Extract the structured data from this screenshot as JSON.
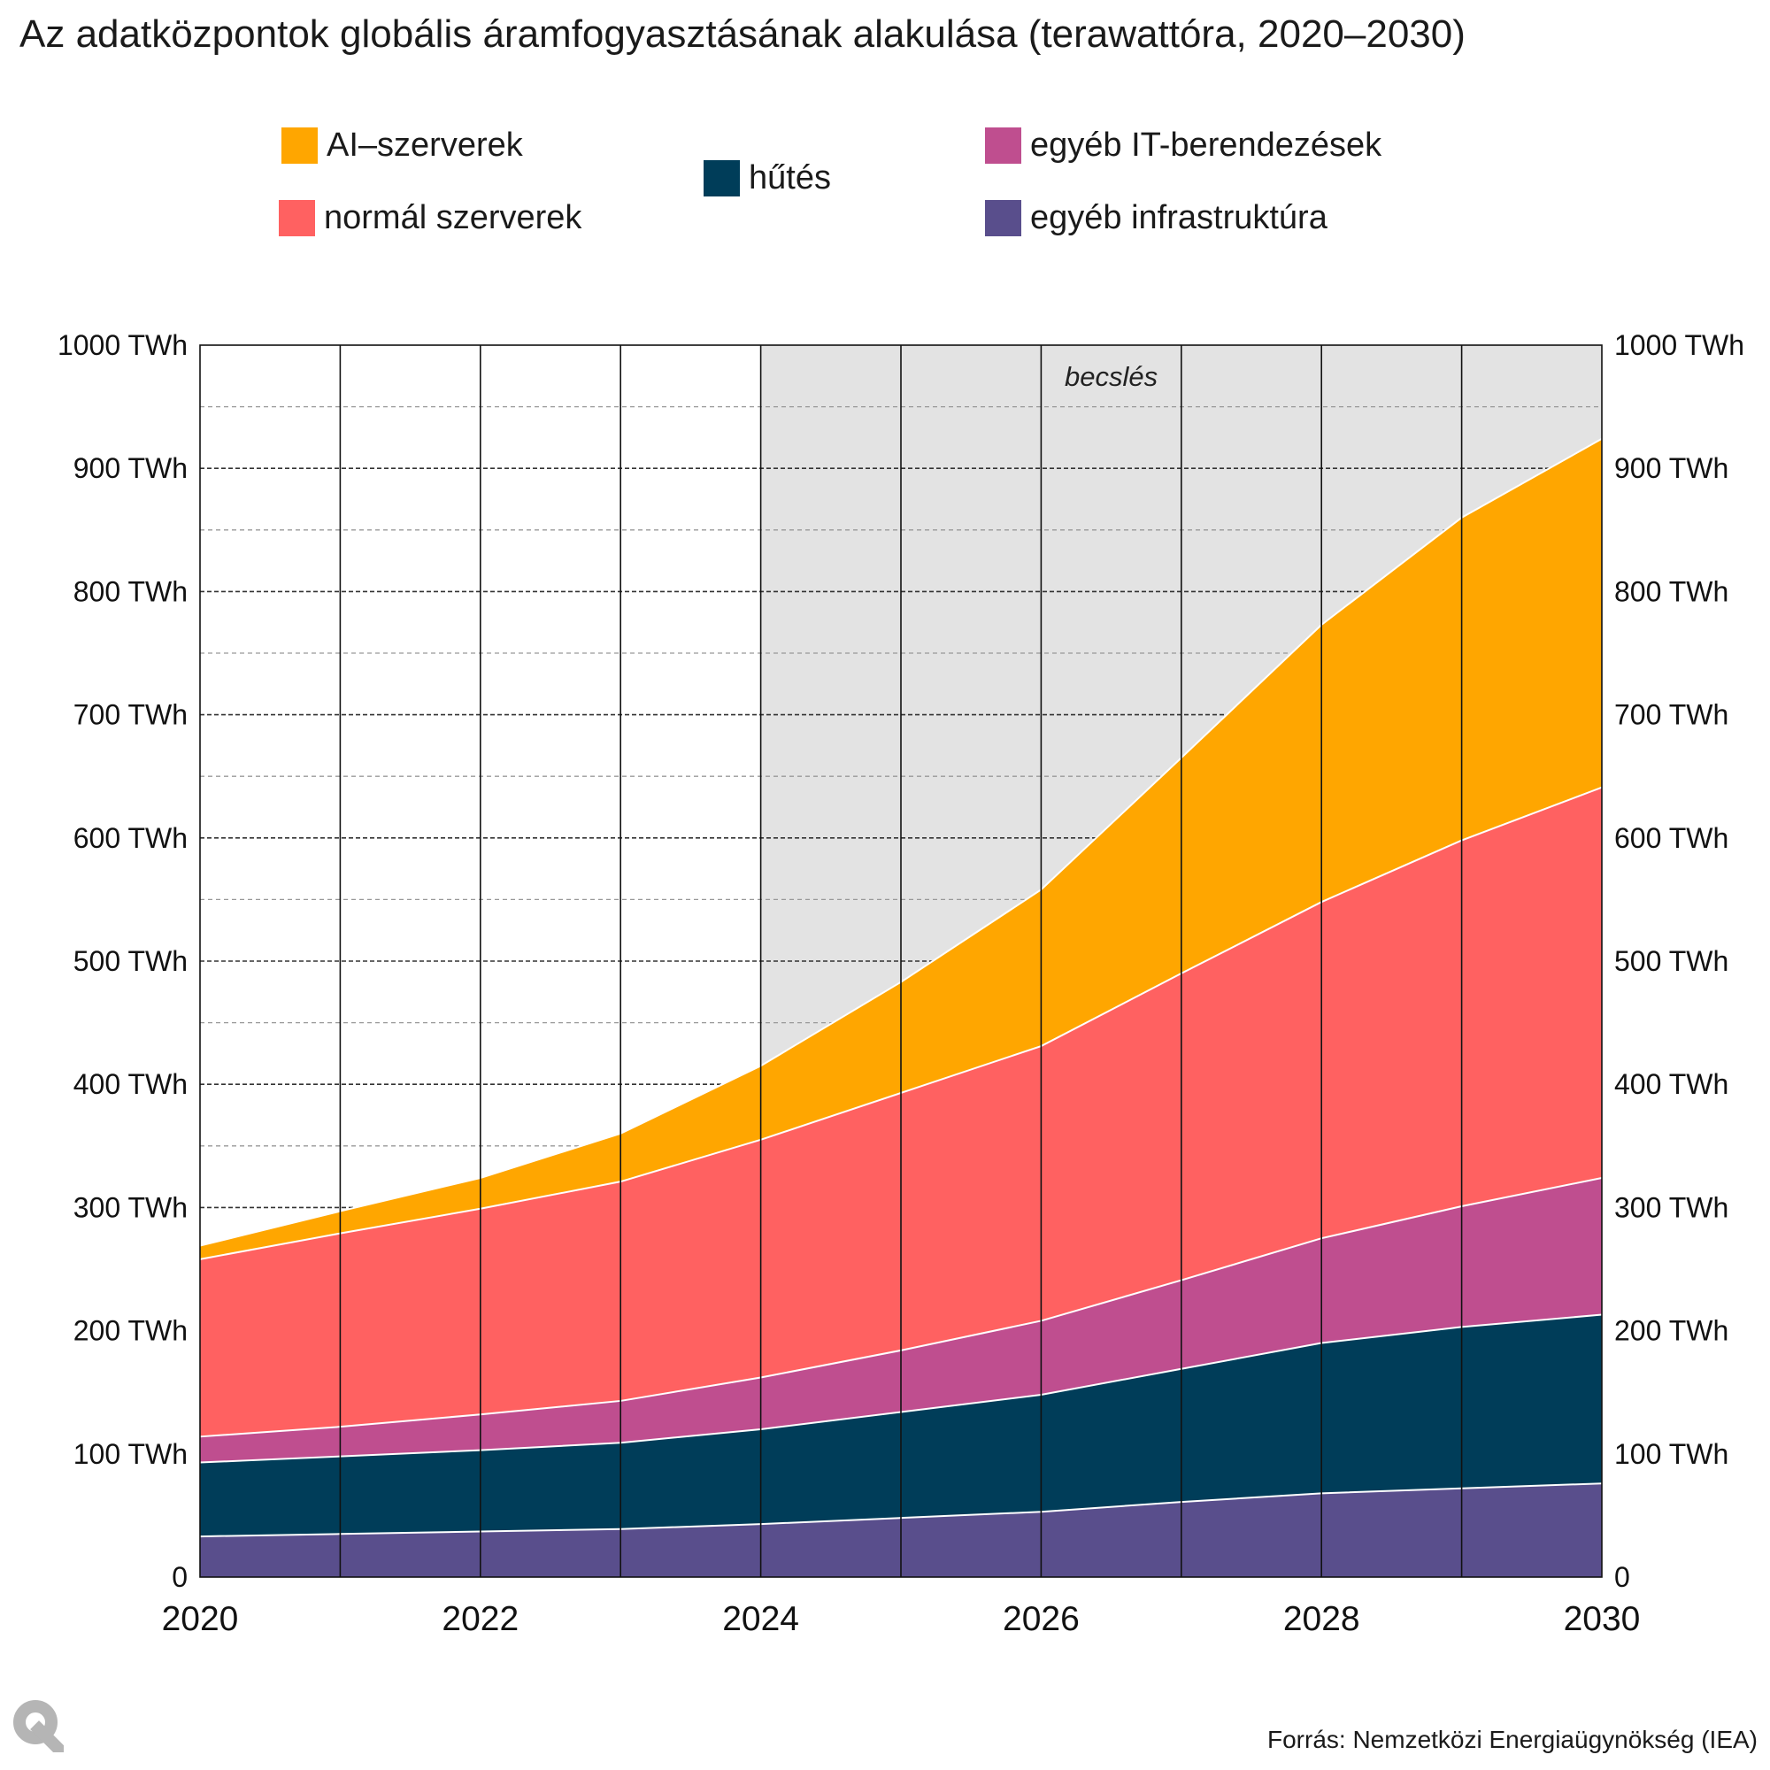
{
  "chart_data": {
    "type": "area",
    "stacked": true,
    "title": "Az adatközpontok globális áramfogyasztásának alakulása (terawattóra, 2020–2030)",
    "x": [
      2020,
      2021,
      2022,
      2023,
      2024,
      2025,
      2026,
      2027,
      2028,
      2029,
      2030
    ],
    "x_tick_labels": [
      "2020",
      "2022",
      "2024",
      "2026",
      "2028",
      "2030"
    ],
    "y_tick_labels": [
      "0",
      "100 TWh",
      "200 TWh",
      "300 TWh",
      "400 TWh",
      "500 TWh",
      "600 TWh",
      "700 TWh",
      "800 TWh",
      "900 TWh",
      "1000 TWh"
    ],
    "ylim": [
      0,
      1000
    ],
    "xlim": [
      2020,
      2030
    ],
    "grid": true,
    "dual_y_axis": true,
    "legend_position": "top",
    "series": [
      {
        "name": "egyéb infrastruktúra",
        "color": "#594e8c",
        "values": [
          33,
          35,
          37,
          39,
          43,
          48,
          53,
          61,
          68,
          72,
          76
        ]
      },
      {
        "name": "hűtés",
        "color": "#003d59",
        "values": [
          60,
          63,
          66,
          70,
          77,
          86,
          95,
          108,
          122,
          131,
          137
        ]
      },
      {
        "name": "egyéb IT-berendezések",
        "color": "#bf4e8f",
        "values": [
          21,
          24,
          29,
          34,
          42,
          50,
          60,
          72,
          85,
          98,
          111
        ]
      },
      {
        "name": "normál szerverek",
        "color": "#ff6161",
        "values": [
          144,
          157,
          167,
          178,
          193,
          209,
          223,
          249,
          273,
          297,
          317
        ]
      },
      {
        "name": "AI–szerverek",
        "color": "#ffa600",
        "values": [
          11,
          18,
          25,
          39,
          60,
          90,
          127,
          175,
          225,
          262,
          283
        ]
      }
    ],
    "annotation": {
      "text": "becslés",
      "from_x": 2024,
      "to_x": 2030,
      "shade_color": "#e3e3e3"
    }
  },
  "legend": {
    "ai": "AI–szerverek",
    "normal": "normál szerverek",
    "cooling": "hűtés",
    "other_it": "egyéb IT-berendezések",
    "other_infra": "egyéb infrastruktúra"
  },
  "logo": "Q",
  "source": "Forrás: Nemzetközi Energiaügynökség (IEA)"
}
